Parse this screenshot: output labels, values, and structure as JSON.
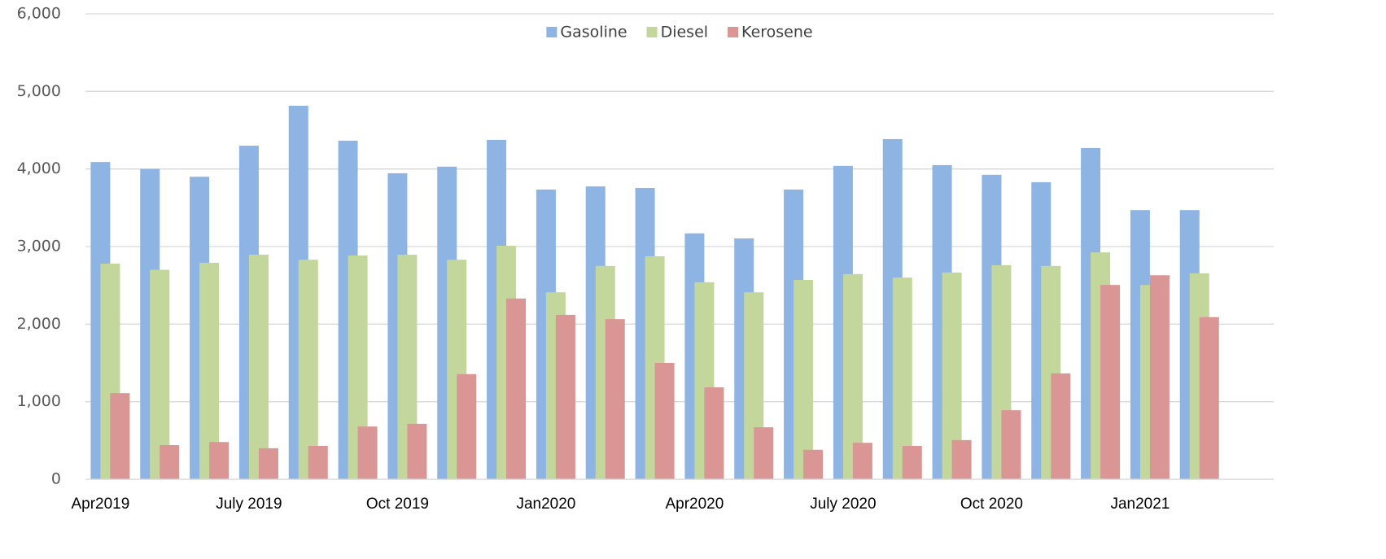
{
  "chart_data": {
    "type": "bar",
    "categories": [
      "Apr2019",
      null,
      null,
      "July 2019",
      null,
      null,
      "Oct 2019",
      null,
      null,
      "Jan2020",
      null,
      null,
      "Apr2020",
      null,
      null,
      "July 2020",
      null,
      null,
      "Oct 2020",
      null,
      null,
      "Jan2021",
      null,
      null
    ],
    "series": [
      {
        "name": "Gasoline",
        "color": "#8eb4e3",
        "values": [
          4090,
          4000,
          3900,
          4300,
          4815,
          4365,
          3945,
          4030,
          4375,
          3735,
          3775,
          3755,
          3170,
          3105,
          3735,
          4040,
          4385,
          4050,
          3925,
          3830,
          4270,
          3470,
          3470,
          null
        ]
      },
      {
        "name": "Diesel",
        "color": "#c3d69b",
        "values": [
          2780,
          2700,
          2790,
          2895,
          2830,
          2885,
          2895,
          2830,
          3010,
          2410,
          2750,
          2875,
          2540,
          2410,
          2570,
          2645,
          2600,
          2665,
          2760,
          2750,
          2925,
          2505,
          2655,
          null
        ]
      },
      {
        "name": "Kerosene",
        "color": "#d99694",
        "values": [
          1110,
          440,
          480,
          400,
          430,
          680,
          715,
          1355,
          2330,
          2120,
          2065,
          1500,
          1185,
          670,
          380,
          470,
          430,
          505,
          890,
          1365,
          2505,
          2630,
          2090,
          null
        ]
      }
    ],
    "ylim": [
      0,
      6000
    ],
    "yticks": [
      0,
      {
        "value": 1000,
        "label": "1,000"
      },
      {
        "value": 2000,
        "label": "2,000"
      },
      {
        "value": 3000,
        "label": "3,000"
      },
      {
        "value": 4000,
        "label": "4,000"
      },
      {
        "value": 5000,
        "label": "5,000"
      },
      {
        "value": 6000,
        "label": "6,000"
      }
    ],
    "grid": true,
    "legend": "top"
  }
}
